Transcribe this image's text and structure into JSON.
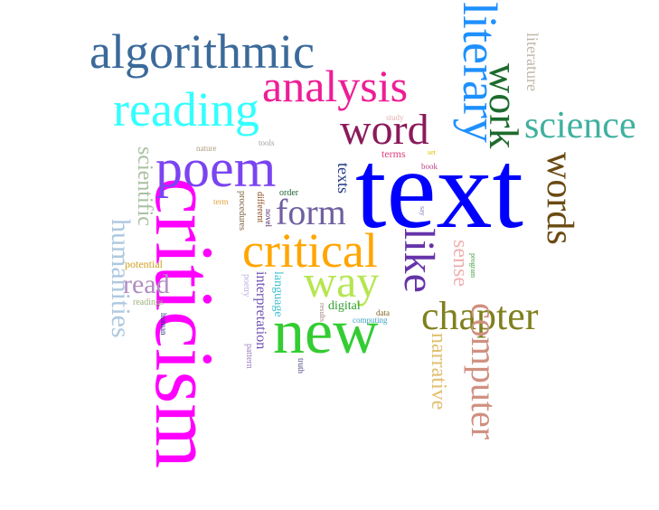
{
  "words": [
    {
      "text": "text",
      "color": "#0000ff",
      "size": 124,
      "rot": 0
    },
    {
      "text": "criticism",
      "color": "#ff00ff",
      "size": 92,
      "rot": 90
    },
    {
      "text": "new",
      "color": "#33cc33",
      "size": 70,
      "rot": 0
    },
    {
      "text": "poem",
      "color": "#7b44f2",
      "size": 60,
      "rot": 0
    },
    {
      "text": "algorithmic",
      "color": "#3b6a9a",
      "size": 54,
      "rot": 0
    },
    {
      "text": "literary",
      "color": "#1e90ff",
      "size": 54,
      "rot": 90
    },
    {
      "text": "reading",
      "color": "#33ffff",
      "size": 54,
      "rot": 0
    },
    {
      "text": "analysis",
      "color": "#ee1e96",
      "size": 50,
      "rot": 0
    },
    {
      "text": "critical",
      "color": "#ffa500",
      "size": 54,
      "rot": 0
    },
    {
      "text": "way",
      "color": "#b5e650",
      "size": 50,
      "rot": 0
    },
    {
      "text": "word",
      "color": "#8b1a5a",
      "size": 48,
      "rot": 0
    },
    {
      "text": "work",
      "color": "#1e6b2e",
      "size": 46,
      "rot": 90
    },
    {
      "text": "like",
      "color": "#6633aa",
      "size": 48,
      "rot": 90
    },
    {
      "text": "chapter",
      "color": "#808020",
      "size": 44,
      "rot": 0
    },
    {
      "text": "words",
      "color": "#6b4a12",
      "size": 42,
      "rot": 90
    },
    {
      "text": "science",
      "color": "#40b0a0",
      "size": 42,
      "rot": 0
    },
    {
      "text": "computer",
      "color": "#d09080",
      "size": 40,
      "rot": 90
    },
    {
      "text": "form",
      "color": "#7060a0",
      "size": 40,
      "rot": 0
    },
    {
      "text": "humanities",
      "color": "#aec8e0",
      "size": 30,
      "rot": 90
    },
    {
      "text": "read",
      "color": "#b08cc0",
      "size": 30,
      "rot": 0
    },
    {
      "text": "scientific",
      "color": "#a8c0a0",
      "size": 24,
      "rot": 90
    },
    {
      "text": "narrative",
      "color": "#e0c070",
      "size": 24,
      "rot": 90
    },
    {
      "text": "sense",
      "color": "#f0b0b0",
      "size": 24,
      "rot": 90
    },
    {
      "text": "texts",
      "color": "#203880",
      "size": 18,
      "rot": 90
    },
    {
      "text": "literature",
      "color": "#c0b8a8",
      "size": 18,
      "rot": 90
    },
    {
      "text": "interpretation",
      "color": "#7050b0",
      "size": 16,
      "rot": 90
    },
    {
      "text": "digital",
      "color": "#30a030",
      "size": 14,
      "rot": 0
    },
    {
      "text": "language",
      "color": "#40c0d0",
      "size": 14,
      "rot": 90
    },
    {
      "text": "potential",
      "color": "#d0a020",
      "size": 12,
      "rot": 0
    },
    {
      "text": "terms",
      "color": "#e04080",
      "size": 12,
      "rot": 0
    },
    {
      "text": "poetry",
      "color": "#c0b0e0",
      "size": 10,
      "rot": 90
    },
    {
      "text": "pattern",
      "color": "#a080c0",
      "size": 10,
      "rot": 90
    },
    {
      "text": "procedures",
      "color": "#806040",
      "size": 10,
      "rot": 90
    },
    {
      "text": "different",
      "color": "#8a4a1a",
      "size": 10,
      "rot": 90
    },
    {
      "text": "novel",
      "color": "#402060",
      "size": 9,
      "rot": 90
    },
    {
      "text": "order",
      "color": "#20603a",
      "size": 10,
      "rot": 0
    },
    {
      "text": "study",
      "color": "#e8b0b0",
      "size": 9,
      "rot": 0
    },
    {
      "text": "nature",
      "color": "#b0a080",
      "size": 9,
      "rot": 0
    },
    {
      "text": "tools",
      "color": "#a0a0a0",
      "size": 9,
      "rot": 0
    },
    {
      "text": "set",
      "color": "#e0c000",
      "size": 8,
      "rot": 0
    },
    {
      "text": "book",
      "color": "#c04080",
      "size": 9,
      "rot": 0
    },
    {
      "text": "term",
      "color": "#e0a040",
      "size": 9,
      "rot": 0
    },
    {
      "text": "say",
      "color": "#8080c0",
      "size": 8,
      "rot": 90
    },
    {
      "text": "program",
      "color": "#40a040",
      "size": 8,
      "rot": 90
    },
    {
      "text": "readings",
      "color": "#a0b080",
      "size": 10,
      "rot": 0
    },
    {
      "text": "human",
      "color": "#202080",
      "size": 9,
      "rot": 90
    },
    {
      "text": "results",
      "color": "#a08080",
      "size": 8,
      "rot": 90
    },
    {
      "text": "truth",
      "color": "#404080",
      "size": 9,
      "rot": 90
    },
    {
      "text": "data",
      "color": "#806020",
      "size": 9,
      "rot": 0
    },
    {
      "text": "computing",
      "color": "#40a0c0",
      "size": 9,
      "rot": 0
    }
  ]
}
